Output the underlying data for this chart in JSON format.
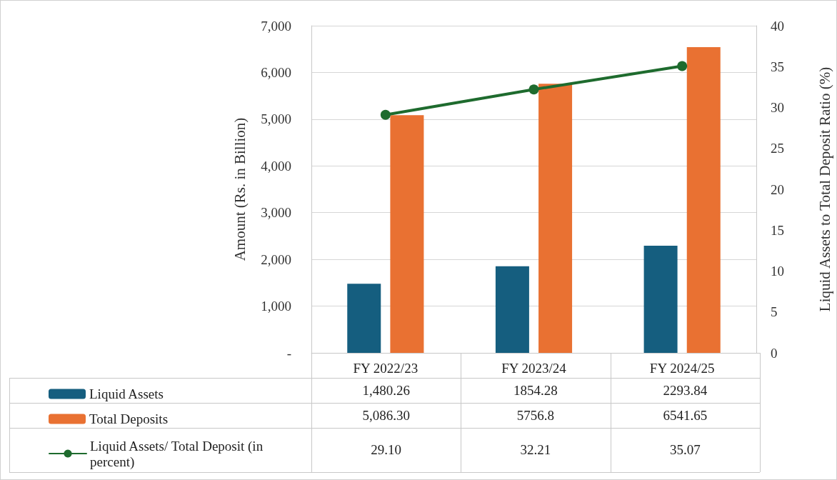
{
  "chart_data": {
    "type": "bar",
    "ylabel": "Amount (Rs. in Billion)",
    "y2label": "Liquid Assets to Total Deposit Ratio (%)",
    "categories": [
      "FY 2022/23",
      "FY 2023/24",
      "FY 2024/25"
    ],
    "series": [
      {
        "name": "Liquid Assets",
        "color": "#155e7f",
        "values": [
          1480.26,
          1854.28,
          2293.84
        ],
        "value_labels": [
          "1,480.26",
          "1854.28",
          "2293.84"
        ]
      },
      {
        "name": "Total Deposits",
        "color": "#e97132",
        "values": [
          5086.3,
          5756.8,
          6541.65
        ],
        "value_labels": [
          "5,086.30",
          "5756.8",
          "6541.65"
        ]
      },
      {
        "name": "Liquid Assets/ Total Deposit (in percent)",
        "type": "line",
        "axis": "y2",
        "color": "#1e6b2e",
        "marker": "circle",
        "values": [
          29.1,
          32.21,
          35.07
        ],
        "value_labels": [
          "29.10",
          "32.21",
          "35.07"
        ]
      }
    ],
    "ylim": [
      0,
      7000
    ],
    "yticks": [
      {
        "value": 0,
        "label": "-"
      },
      {
        "value": 1000,
        "label": "1,000"
      },
      {
        "value": 2000,
        "label": "2,000"
      },
      {
        "value": 3000,
        "label": "3,000"
      },
      {
        "value": 4000,
        "label": "4,000"
      },
      {
        "value": 5000,
        "label": "5,000"
      },
      {
        "value": 6000,
        "label": "6,000"
      },
      {
        "value": 7000,
        "label": "7,000"
      }
    ],
    "y2lim": [
      0,
      40
    ],
    "y2ticks": [
      0,
      5,
      10,
      15,
      20,
      25,
      30,
      35,
      40
    ],
    "grid": "y",
    "legend": "bottom"
  }
}
